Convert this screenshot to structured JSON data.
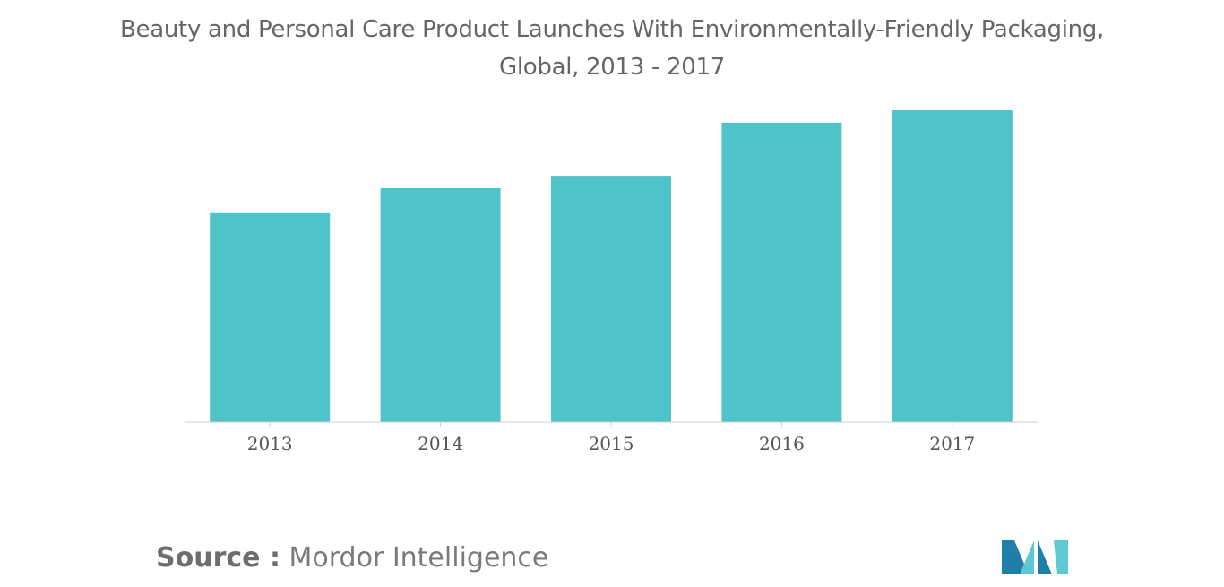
{
  "title_line1": "Beauty and Personal Care Product Launches With Environmentally-Friendly Packaging,",
  "title_line2": "Global, 2013 - 2017",
  "source_prefix": "Source :",
  "source_name": "Mordor Intelligence",
  "colors": {
    "bar": "#4fc3ca",
    "logo_dark": "#1f7fa8",
    "logo_light": "#5cc8d1"
  },
  "chart_data": {
    "type": "bar",
    "categories": [
      "2013",
      "2014",
      "2015",
      "2016",
      "2017"
    ],
    "values": [
      67,
      75,
      79,
      96,
      100
    ],
    "ylim": [
      0,
      100
    ],
    "grid": false,
    "legend": "none"
  }
}
